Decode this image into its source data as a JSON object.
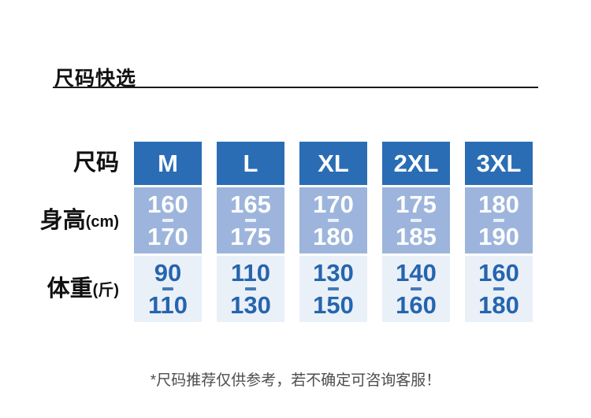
{
  "page": {
    "title": "尺码快选",
    "footnote": "*尺码推荐仅供参考，若不确定可咨询客服！"
  },
  "table": {
    "row_labels": {
      "size": "尺码",
      "height": "身高",
      "height_unit": "(cm)",
      "weight": "体重",
      "weight_unit": "(斤)"
    },
    "columns": [
      {
        "size": "M",
        "height_min": "160",
        "height_max": "170",
        "weight_min": "90",
        "weight_max": "110"
      },
      {
        "size": "L",
        "height_min": "165",
        "height_max": "175",
        "weight_min": "110",
        "weight_max": "130"
      },
      {
        "size": "XL",
        "height_min": "170",
        "height_max": "180",
        "weight_min": "130",
        "weight_max": "150"
      },
      {
        "size": "2XL",
        "height_min": "175",
        "height_max": "185",
        "weight_min": "140",
        "weight_max": "160"
      },
      {
        "size": "3XL",
        "height_min": "180",
        "height_max": "190",
        "weight_min": "160",
        "weight_max": "180"
      }
    ],
    "colors": {
      "header_bg": "#2a6db5",
      "height_row_bg": "#9db5dc",
      "weight_row_bg": "#eaf0f8",
      "header_text": "#ffffff",
      "height_text": "#ffffff",
      "weight_text": "#2565ae"
    }
  },
  "chart_data": {
    "type": "table",
    "title": "尺码快选",
    "columns": [
      "尺码",
      "M",
      "L",
      "XL",
      "2XL",
      "3XL"
    ],
    "rows": [
      {
        "label": "身高(cm)",
        "values": [
          "160-170",
          "165-175",
          "170-180",
          "175-185",
          "180-190"
        ]
      },
      {
        "label": "体重(斤)",
        "values": [
          "90-110",
          "110-130",
          "130-150",
          "140-160",
          "160-180"
        ]
      }
    ],
    "footnote": "*尺码推荐仅供参考，若不确定可咨询客服！"
  }
}
